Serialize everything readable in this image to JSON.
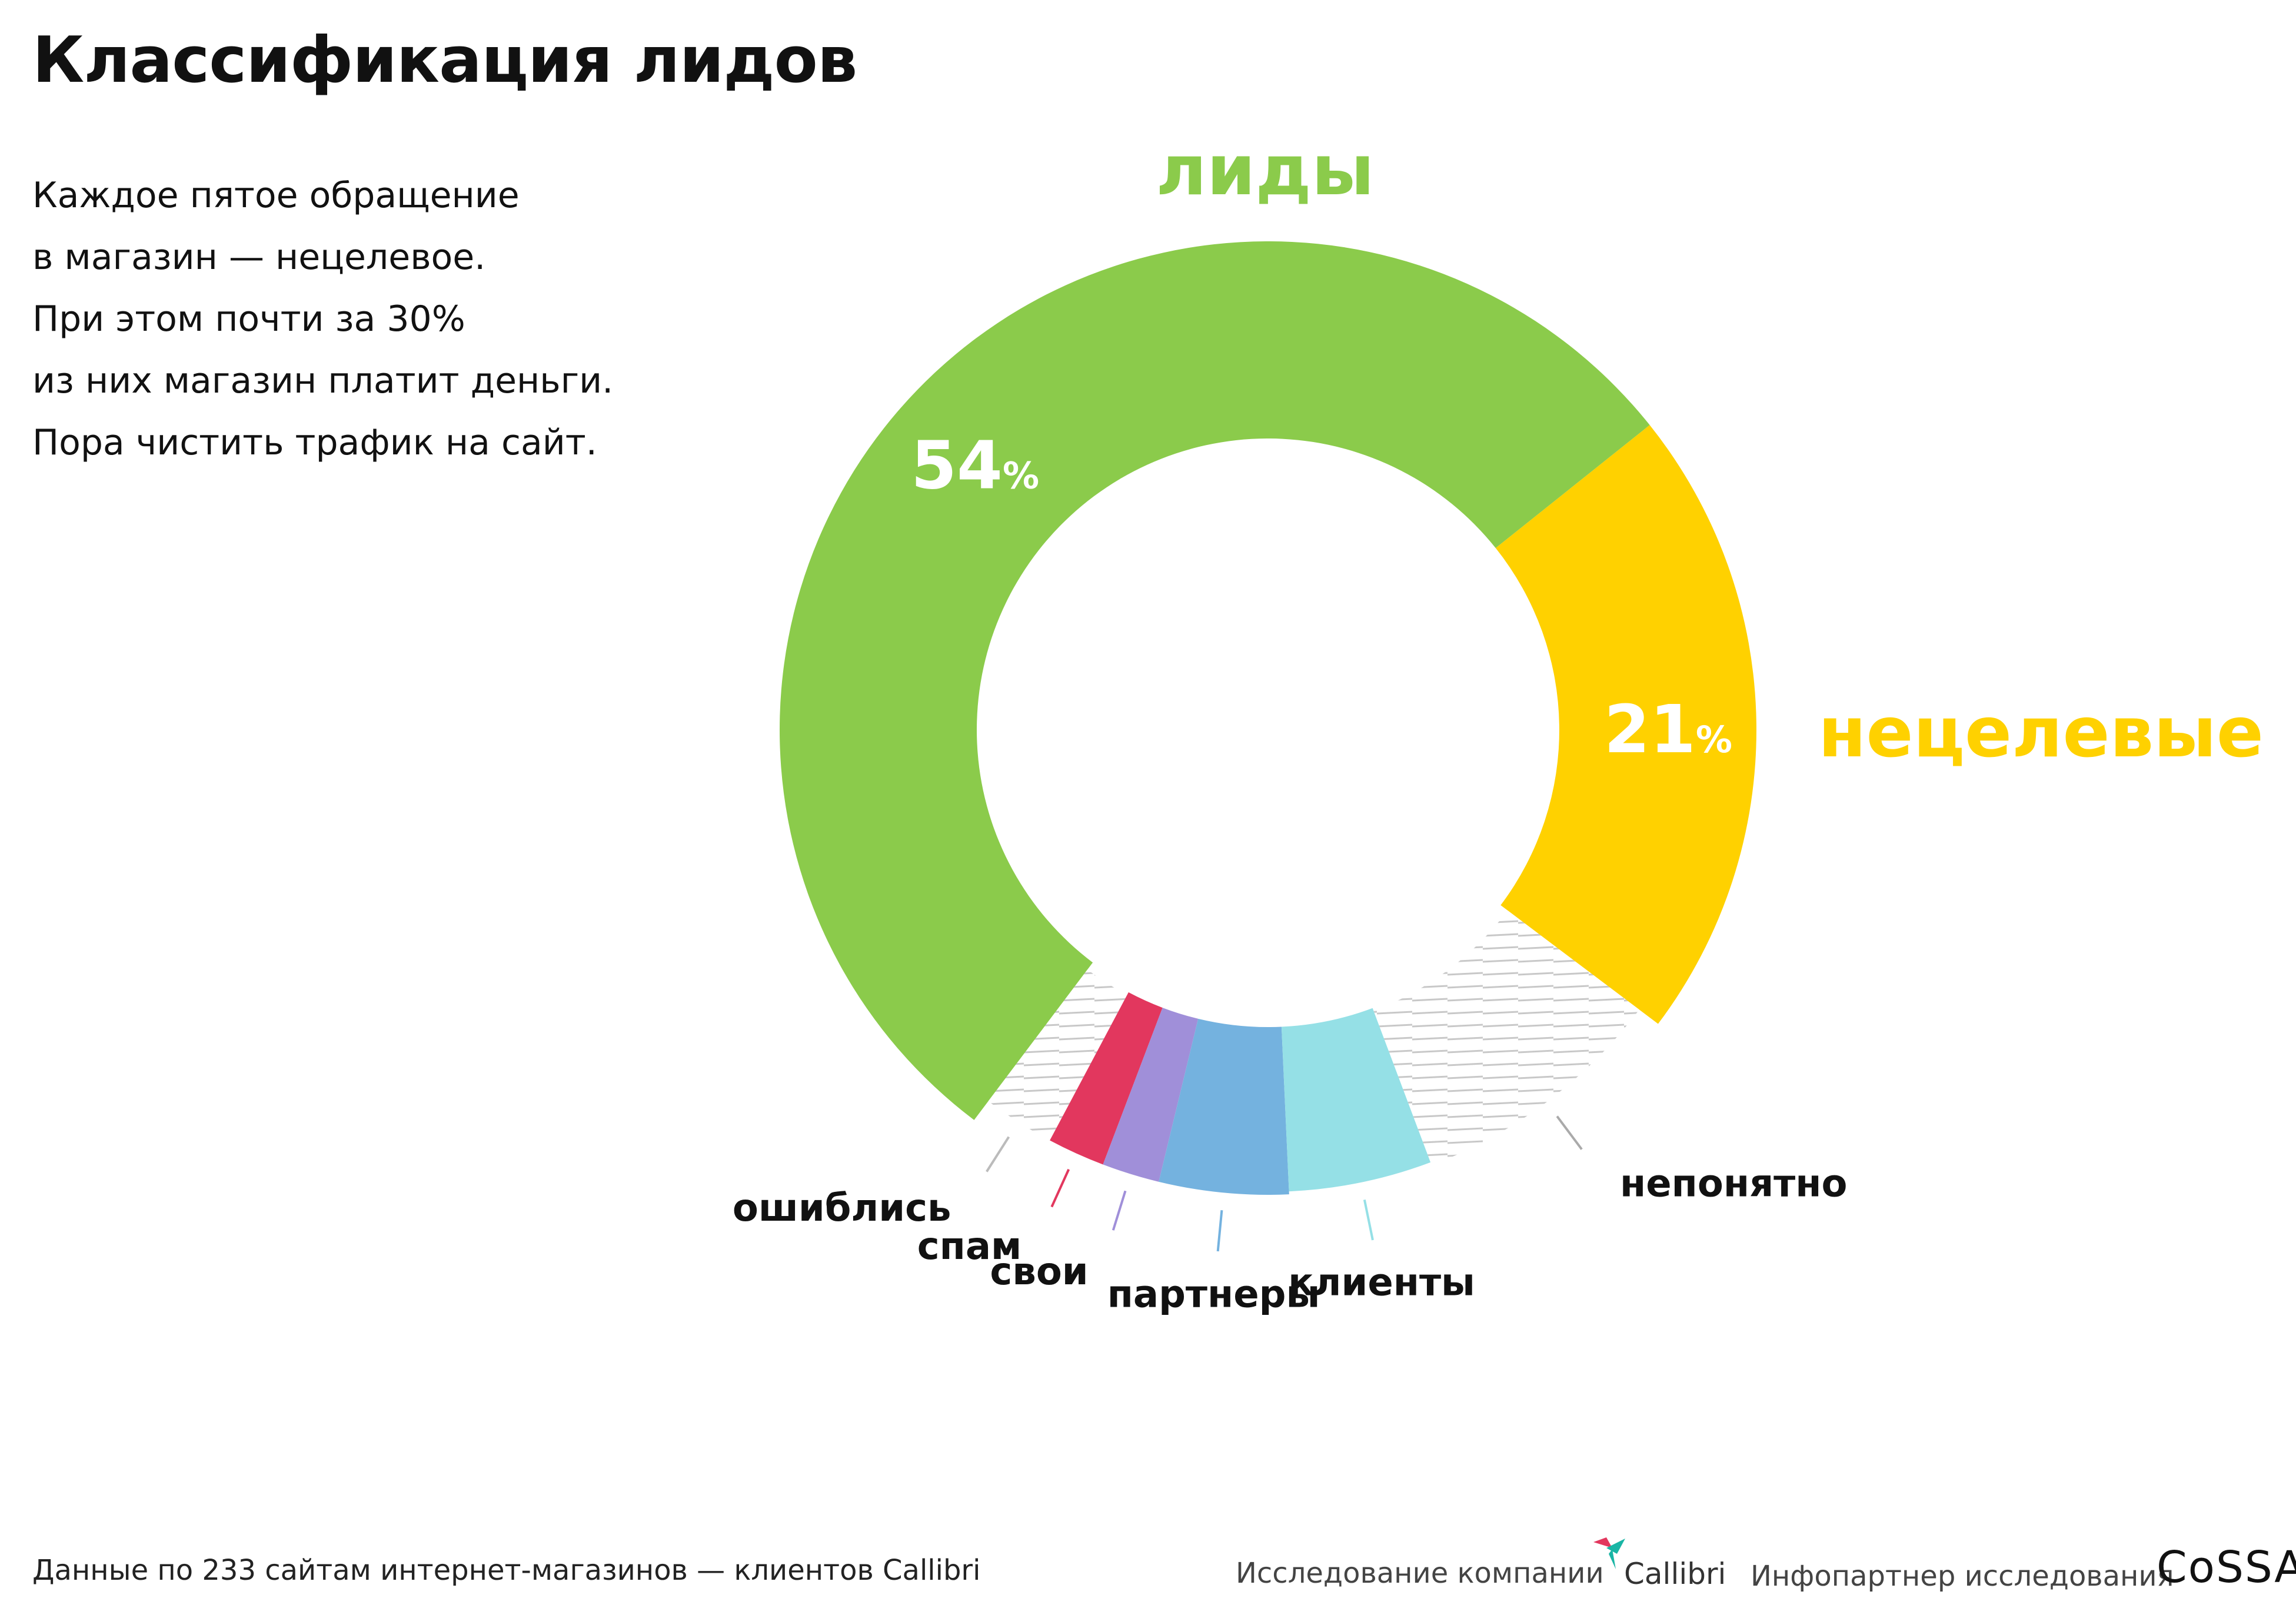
{
  "page": {
    "title": "Классификация лидов",
    "description": [
      "Каждое пятое обращение",
      "в магазин — нецелевое.",
      "При этом почти за 30%",
      "из них магазин платит деньги.",
      "Пора чистить трафик на сайт."
    ]
  },
  "footer": {
    "source": "Данные по 233 сайтам интернет-магазинов — клиентов Callibri",
    "research": "Исследование компании",
    "callibri": "Callibri",
    "partner": "Инфопартнер исследования",
    "cossa": "CoSSA"
  },
  "chart_data": {
    "type": "pie",
    "donut": true,
    "group_labels": [
      {
        "text": "лиды",
        "color": "#8BCB4B"
      },
      {
        "text": "нецелевые",
        "color": "#FFD100"
      }
    ],
    "series": [
      {
        "name": "лиды",
        "value": 54,
        "display": "54",
        "unit": "%",
        "color": "#8BCB4B",
        "shown_value": true
      },
      {
        "name": "нецелевые",
        "value": 21,
        "display": "21",
        "unit": "%",
        "color": "#FFD100",
        "shown_value": true
      }
    ],
    "breakdown": [
      {
        "name": "ошиблись",
        "value": 2.5,
        "color": "hatched",
        "tick_color": "#BBBBBB"
      },
      {
        "name": "спам",
        "value": 2,
        "color": "#E2375E",
        "tick_color": "#E2375E"
      },
      {
        "name": "свои",
        "value": 2,
        "color": "#A08FD9",
        "tick_color": "#A08FD9"
      },
      {
        "name": "партнеры",
        "value": 4.5,
        "color": "#74B2DF",
        "tick_color": "#74B2DF"
      },
      {
        "name": "клиенты",
        "value": 5,
        "color": "#95E0E6",
        "tick_color": "#95E0E6"
      },
      {
        "name": "непонятно",
        "value": 9,
        "color": "hatched",
        "tick_color": "#AAAAAA"
      }
    ]
  }
}
